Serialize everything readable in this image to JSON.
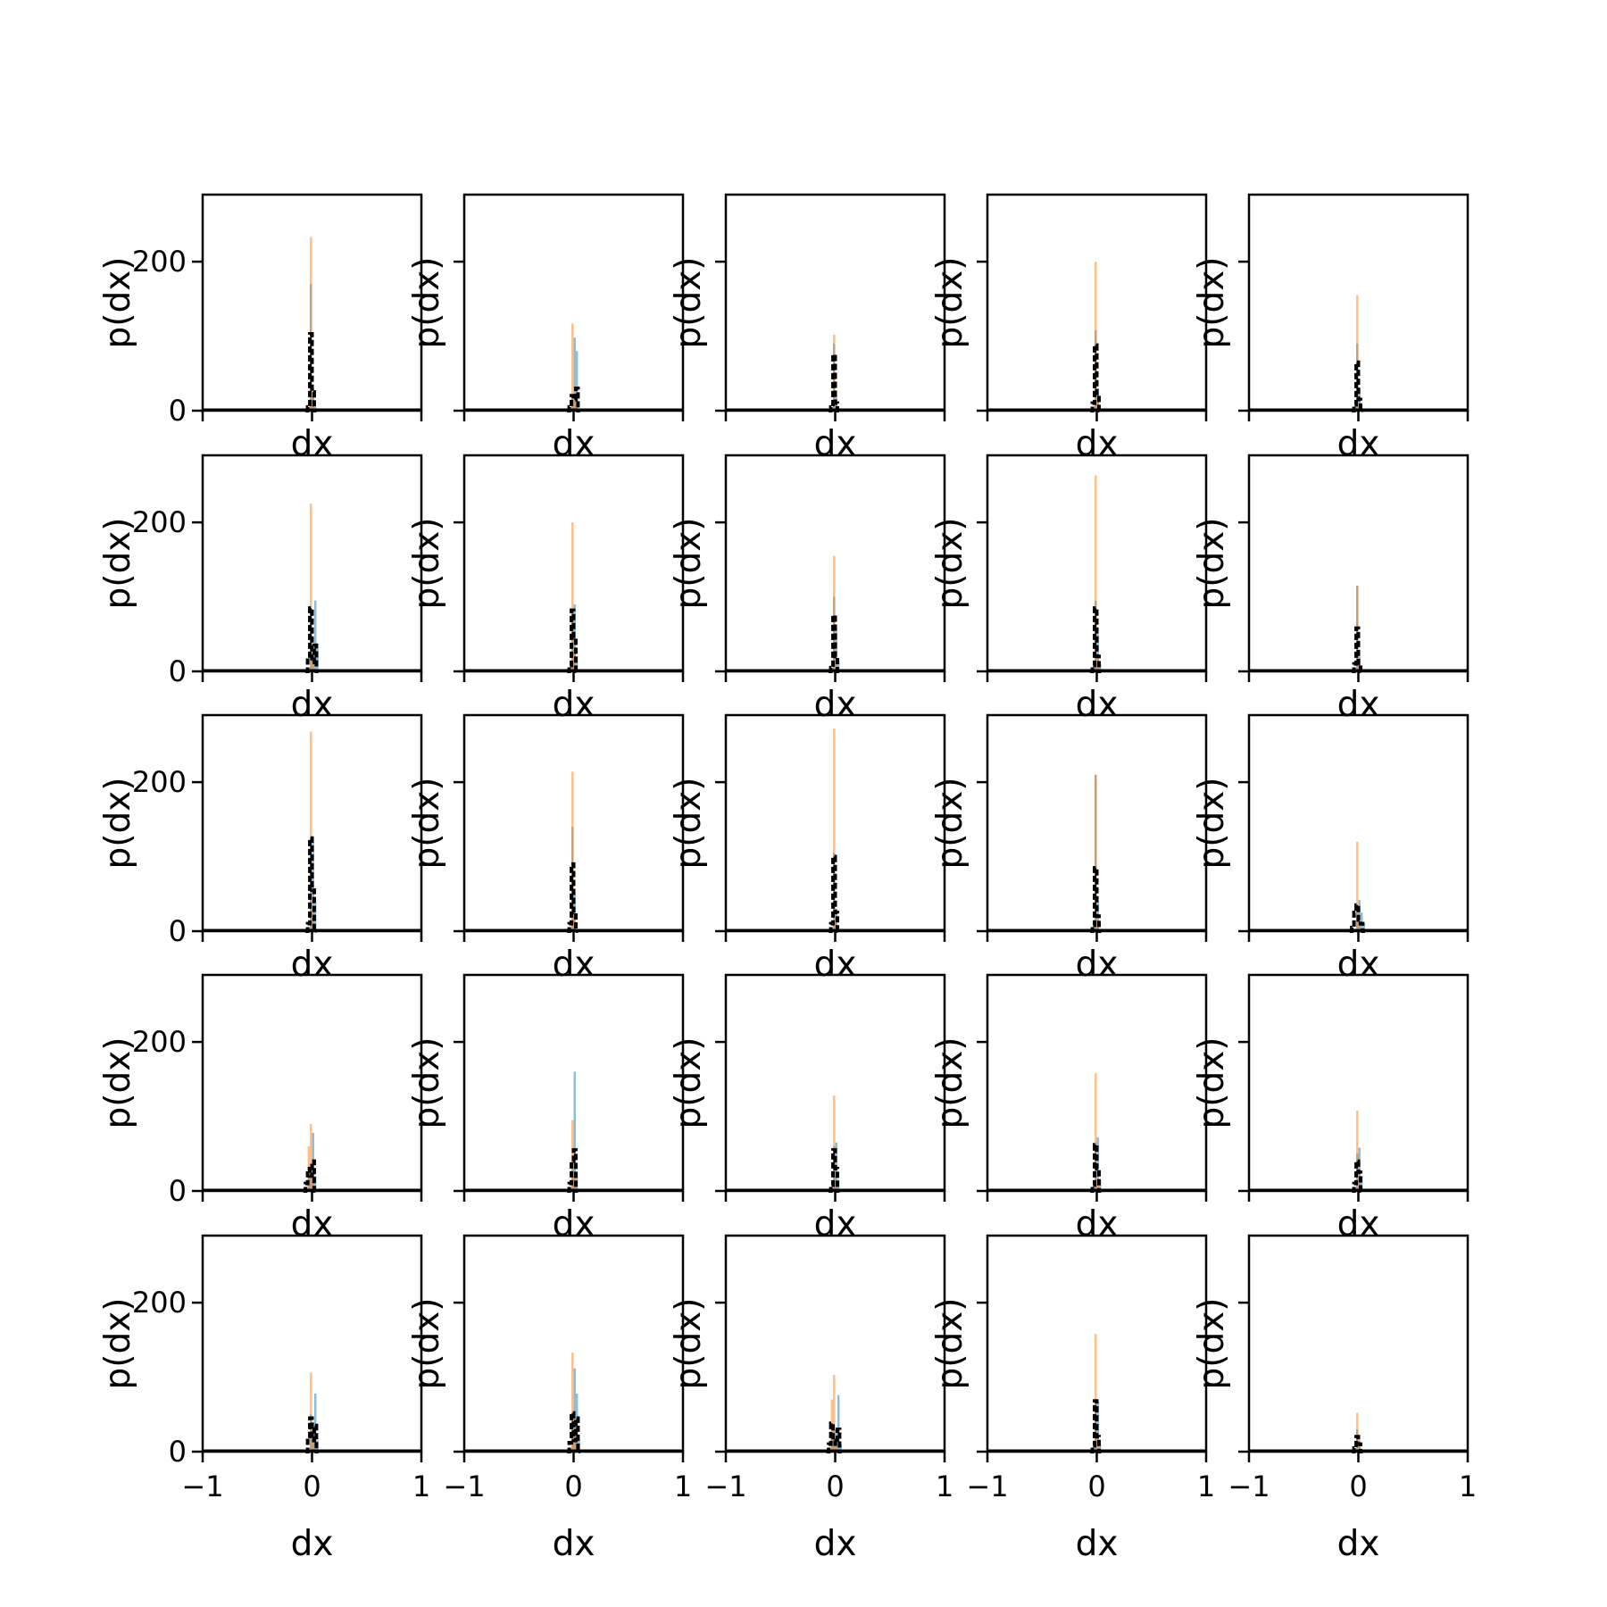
{
  "figure": {
    "grid": "5x5",
    "sharey": true,
    "colors": {
      "blue": "#1f77b4",
      "orange": "#ff7f0e",
      "dashed": "#000000"
    },
    "alpha": 0.5
  },
  "chart_data": {
    "type": "histogram-grid",
    "xlabel": "dx",
    "ylabel": "p(dx)",
    "xlim": [
      -1,
      1
    ],
    "ylim": [
      0,
      290
    ],
    "xticks": [
      -1,
      0,
      1
    ],
    "xtick_labels": [
      "−1",
      "0",
      "1"
    ],
    "yticks": [
      0,
      200
    ],
    "ytick_labels": [
      "0",
      "200"
    ],
    "bin_width": 0.02,
    "panels": [
      {
        "blue": [
          [
            -0.01,
            170
          ],
          [
            0.01,
            20
          ],
          [
            0.03,
            5
          ]
        ],
        "orange": [
          [
            -0.01,
            233
          ],
          [
            0.01,
            30
          ]
        ],
        "dashed": [
          [
            -0.05,
            0
          ],
          [
            -0.03,
            5
          ],
          [
            -0.01,
            103
          ],
          [
            0.01,
            25
          ],
          [
            0.03,
            0
          ]
        ]
      },
      {
        "blue": [
          [
            -0.01,
            20
          ],
          [
            0.01,
            98
          ],
          [
            0.03,
            80
          ]
        ],
        "orange": [
          [
            -0.01,
            117
          ],
          [
            0.01,
            15
          ]
        ],
        "dashed": [
          [
            -0.05,
            0
          ],
          [
            -0.03,
            5
          ],
          [
            -0.01,
            20
          ],
          [
            0.01,
            15
          ],
          [
            0.03,
            30
          ],
          [
            0.05,
            0
          ]
        ]
      },
      {
        "blue": [
          [
            -0.01,
            90
          ],
          [
            0.01,
            20
          ]
        ],
        "orange": [
          [
            -0.01,
            102
          ],
          [
            0.01,
            10
          ]
        ],
        "dashed": [
          [
            -0.05,
            0
          ],
          [
            -0.03,
            5
          ],
          [
            -0.01,
            75
          ],
          [
            0.01,
            10
          ],
          [
            0.03,
            0
          ]
        ]
      },
      {
        "blue": [
          [
            -0.01,
            108
          ],
          [
            0.01,
            30
          ]
        ],
        "orange": [
          [
            -0.01,
            200
          ],
          [
            0.01,
            15
          ]
        ],
        "dashed": [
          [
            -0.05,
            0
          ],
          [
            -0.03,
            10
          ],
          [
            -0.01,
            88
          ],
          [
            0.01,
            20
          ],
          [
            0.03,
            0
          ]
        ]
      },
      {
        "blue": [
          [
            -0.01,
            90
          ],
          [
            0.01,
            30
          ]
        ],
        "orange": [
          [
            -0.01,
            155
          ],
          [
            0.01,
            10
          ]
        ],
        "dashed": [
          [
            -0.05,
            0
          ],
          [
            -0.03,
            8
          ],
          [
            -0.01,
            65
          ],
          [
            0.01,
            15
          ],
          [
            0.03,
            0
          ]
        ]
      },
      {
        "blue": [
          [
            -0.01,
            80
          ],
          [
            0.01,
            20
          ],
          [
            0.03,
            95
          ],
          [
            0.05,
            30
          ]
        ],
        "orange": [
          [
            -0.01,
            225
          ],
          [
            0.01,
            20
          ]
        ],
        "dashed": [
          [
            -0.05,
            0
          ],
          [
            -0.03,
            15
          ],
          [
            -0.01,
            85
          ],
          [
            0.01,
            12
          ],
          [
            0.03,
            35
          ],
          [
            0.05,
            0
          ]
        ]
      },
      {
        "blue": [
          [
            -0.01,
            80
          ],
          [
            0.01,
            90
          ],
          [
            0.03,
            20
          ]
        ],
        "orange": [
          [
            -0.01,
            200
          ],
          [
            0.01,
            25
          ]
        ],
        "dashed": [
          [
            -0.05,
            0
          ],
          [
            -0.03,
            8
          ],
          [
            -0.01,
            82
          ],
          [
            0.01,
            45
          ],
          [
            0.03,
            0
          ]
        ]
      },
      {
        "blue": [
          [
            -0.01,
            100
          ],
          [
            0.01,
            55
          ],
          [
            0.03,
            15
          ]
        ],
        "orange": [
          [
            -0.01,
            155
          ],
          [
            0.01,
            20
          ]
        ],
        "dashed": [
          [
            -0.05,
            0
          ],
          [
            -0.03,
            5
          ],
          [
            -0.01,
            75
          ],
          [
            0.01,
            20
          ],
          [
            0.03,
            0
          ]
        ]
      },
      {
        "blue": [
          [
            -0.01,
            95
          ],
          [
            0.01,
            50
          ],
          [
            0.03,
            10
          ]
        ],
        "orange": [
          [
            -0.01,
            263
          ],
          [
            0.01,
            20
          ]
        ],
        "dashed": [
          [
            -0.05,
            0
          ],
          [
            -0.03,
            8
          ],
          [
            -0.01,
            85
          ],
          [
            0.01,
            20
          ],
          [
            0.03,
            0
          ]
        ]
      },
      {
        "blue": [
          [
            -0.01,
            115
          ],
          [
            0.01,
            20
          ]
        ],
        "orange": [
          [
            -0.01,
            115
          ],
          [
            0.01,
            10
          ]
        ],
        "dashed": [
          [
            -0.05,
            0
          ],
          [
            -0.03,
            10
          ],
          [
            -0.01,
            58
          ],
          [
            0.01,
            8
          ],
          [
            0.03,
            0
          ]
        ]
      },
      {
        "blue": [
          [
            -0.01,
            100
          ],
          [
            0.01,
            120
          ],
          [
            0.03,
            40
          ]
        ],
        "orange": [
          [
            -0.01,
            268
          ],
          [
            0.01,
            30
          ]
        ],
        "dashed": [
          [
            -0.05,
            0
          ],
          [
            -0.03,
            10
          ],
          [
            -0.01,
            125
          ],
          [
            0.01,
            55
          ],
          [
            0.03,
            0
          ]
        ]
      },
      {
        "blue": [
          [
            -0.01,
            140
          ],
          [
            0.01,
            50
          ]
        ],
        "orange": [
          [
            -0.01,
            214
          ],
          [
            0.01,
            20
          ]
        ],
        "dashed": [
          [
            -0.05,
            0
          ],
          [
            -0.03,
            10
          ],
          [
            -0.01,
            90
          ],
          [
            0.01,
            25
          ],
          [
            0.03,
            0
          ]
        ]
      },
      {
        "blue": [
          [
            -0.01,
            105
          ],
          [
            0.01,
            30
          ]
        ],
        "orange": [
          [
            -0.01,
            272
          ],
          [
            0.01,
            20
          ]
        ],
        "dashed": [
          [
            -0.05,
            0
          ],
          [
            -0.03,
            10
          ],
          [
            -0.01,
            100
          ],
          [
            0.01,
            25
          ],
          [
            0.03,
            0
          ]
        ]
      },
      {
        "blue": [
          [
            -0.01,
            210
          ],
          [
            0.01,
            40
          ]
        ],
        "orange": [
          [
            -0.01,
            210
          ],
          [
            0.01,
            15
          ]
        ],
        "dashed": [
          [
            -0.05,
            0
          ],
          [
            -0.03,
            8
          ],
          [
            -0.01,
            85
          ],
          [
            0.01,
            20
          ],
          [
            0.03,
            0
          ]
        ]
      },
      {
        "blue": [
          [
            -0.01,
            35
          ],
          [
            0.01,
            42
          ],
          [
            0.03,
            25
          ],
          [
            0.05,
            10
          ]
        ],
        "orange": [
          [
            -0.01,
            120
          ],
          [
            0.01,
            15
          ]
        ],
        "dashed": [
          [
            -0.07,
            0
          ],
          [
            -0.05,
            5
          ],
          [
            -0.03,
            25
          ],
          [
            -0.01,
            35
          ],
          [
            0.01,
            15
          ],
          [
            0.03,
            10
          ],
          [
            0.05,
            0
          ]
        ]
      },
      {
        "blue": [
          [
            -0.03,
            20
          ],
          [
            -0.01,
            30
          ],
          [
            0.01,
            78
          ],
          [
            0.03,
            20
          ]
        ],
        "orange": [
          [
            -0.03,
            60
          ],
          [
            -0.01,
            90
          ],
          [
            0.01,
            20
          ]
        ],
        "dashed": [
          [
            -0.07,
            0
          ],
          [
            -0.05,
            10
          ],
          [
            -0.03,
            30
          ],
          [
            -0.01,
            20
          ],
          [
            0.01,
            40
          ],
          [
            0.03,
            0
          ]
        ]
      },
      {
        "blue": [
          [
            -0.01,
            40
          ],
          [
            0.01,
            160
          ],
          [
            0.03,
            20
          ]
        ],
        "orange": [
          [
            -0.01,
            95
          ],
          [
            0.01,
            20
          ]
        ],
        "dashed": [
          [
            -0.05,
            0
          ],
          [
            -0.03,
            10
          ],
          [
            -0.01,
            40
          ],
          [
            0.01,
            55
          ],
          [
            0.03,
            0
          ]
        ]
      },
      {
        "blue": [
          [
            -0.01,
            60
          ],
          [
            0.01,
            65
          ],
          [
            0.03,
            15
          ]
        ],
        "orange": [
          [
            -0.01,
            128
          ],
          [
            0.01,
            15
          ]
        ],
        "dashed": [
          [
            -0.05,
            0
          ],
          [
            -0.03,
            8
          ],
          [
            -0.01,
            55
          ],
          [
            0.01,
            30
          ],
          [
            0.03,
            0
          ]
        ]
      },
      {
        "blue": [
          [
            -0.01,
            65
          ],
          [
            0.01,
            72
          ],
          [
            0.03,
            15
          ]
        ],
        "orange": [
          [
            -0.01,
            158
          ],
          [
            0.01,
            15
          ]
        ],
        "dashed": [
          [
            -0.05,
            0
          ],
          [
            -0.03,
            8
          ],
          [
            -0.01,
            62
          ],
          [
            0.01,
            30
          ],
          [
            0.03,
            0
          ]
        ]
      },
      {
        "blue": [
          [
            -0.01,
            50
          ],
          [
            0.01,
            58
          ],
          [
            0.03,
            20
          ]
        ],
        "orange": [
          [
            -0.01,
            108
          ],
          [
            0.01,
            15
          ]
        ],
        "dashed": [
          [
            -0.05,
            0
          ],
          [
            -0.03,
            10
          ],
          [
            -0.01,
            40
          ],
          [
            0.01,
            25
          ],
          [
            0.03,
            0
          ]
        ]
      },
      {
        "blue": [
          [
            -0.01,
            50
          ],
          [
            0.01,
            40
          ],
          [
            0.03,
            78
          ],
          [
            0.05,
            15
          ]
        ],
        "orange": [
          [
            -0.01,
            106
          ],
          [
            0.01,
            20
          ]
        ],
        "dashed": [
          [
            -0.05,
            0
          ],
          [
            -0.03,
            15
          ],
          [
            -0.01,
            45
          ],
          [
            0.01,
            15
          ],
          [
            0.03,
            35
          ],
          [
            0.05,
            0
          ]
        ]
      },
      {
        "blue": [
          [
            -0.01,
            50
          ],
          [
            0.01,
            112
          ],
          [
            0.03,
            78
          ],
          [
            0.05,
            15
          ]
        ],
        "orange": [
          [
            -0.01,
            133
          ],
          [
            0.01,
            20
          ]
        ],
        "dashed": [
          [
            -0.05,
            0
          ],
          [
            -0.03,
            12
          ],
          [
            -0.01,
            52
          ],
          [
            0.01,
            15
          ],
          [
            0.03,
            45
          ],
          [
            0.05,
            0
          ]
        ]
      },
      {
        "blue": [
          [
            -0.03,
            20
          ],
          [
            -0.01,
            30
          ],
          [
            0.01,
            30
          ],
          [
            0.03,
            76
          ],
          [
            0.05,
            10
          ]
        ],
        "orange": [
          [
            -0.03,
            70
          ],
          [
            -0.01,
            103
          ],
          [
            0.01,
            15
          ]
        ],
        "dashed": [
          [
            -0.07,
            0
          ],
          [
            -0.05,
            10
          ],
          [
            -0.03,
            38
          ],
          [
            -0.01,
            15
          ],
          [
            0.01,
            10
          ],
          [
            0.03,
            30
          ],
          [
            0.05,
            0
          ]
        ]
      },
      {
        "blue": [
          [
            -0.01,
            68
          ],
          [
            0.01,
            66
          ],
          [
            0.03,
            10
          ]
        ],
        "orange": [
          [
            -0.01,
            158
          ],
          [
            0.01,
            15
          ]
        ],
        "dashed": [
          [
            -0.05,
            0
          ],
          [
            -0.03,
            8
          ],
          [
            -0.01,
            68
          ],
          [
            0.01,
            20
          ],
          [
            0.03,
            0
          ]
        ]
      },
      {
        "blue": [
          [
            -0.01,
            30
          ],
          [
            0.01,
            15
          ]
        ],
        "orange": [
          [
            -0.01,
            52
          ],
          [
            0.01,
            15
          ]
        ],
        "dashed": [
          [
            -0.05,
            0
          ],
          [
            -0.03,
            5
          ],
          [
            -0.01,
            20
          ],
          [
            0.01,
            10
          ],
          [
            0.03,
            0
          ]
        ]
      }
    ]
  }
}
